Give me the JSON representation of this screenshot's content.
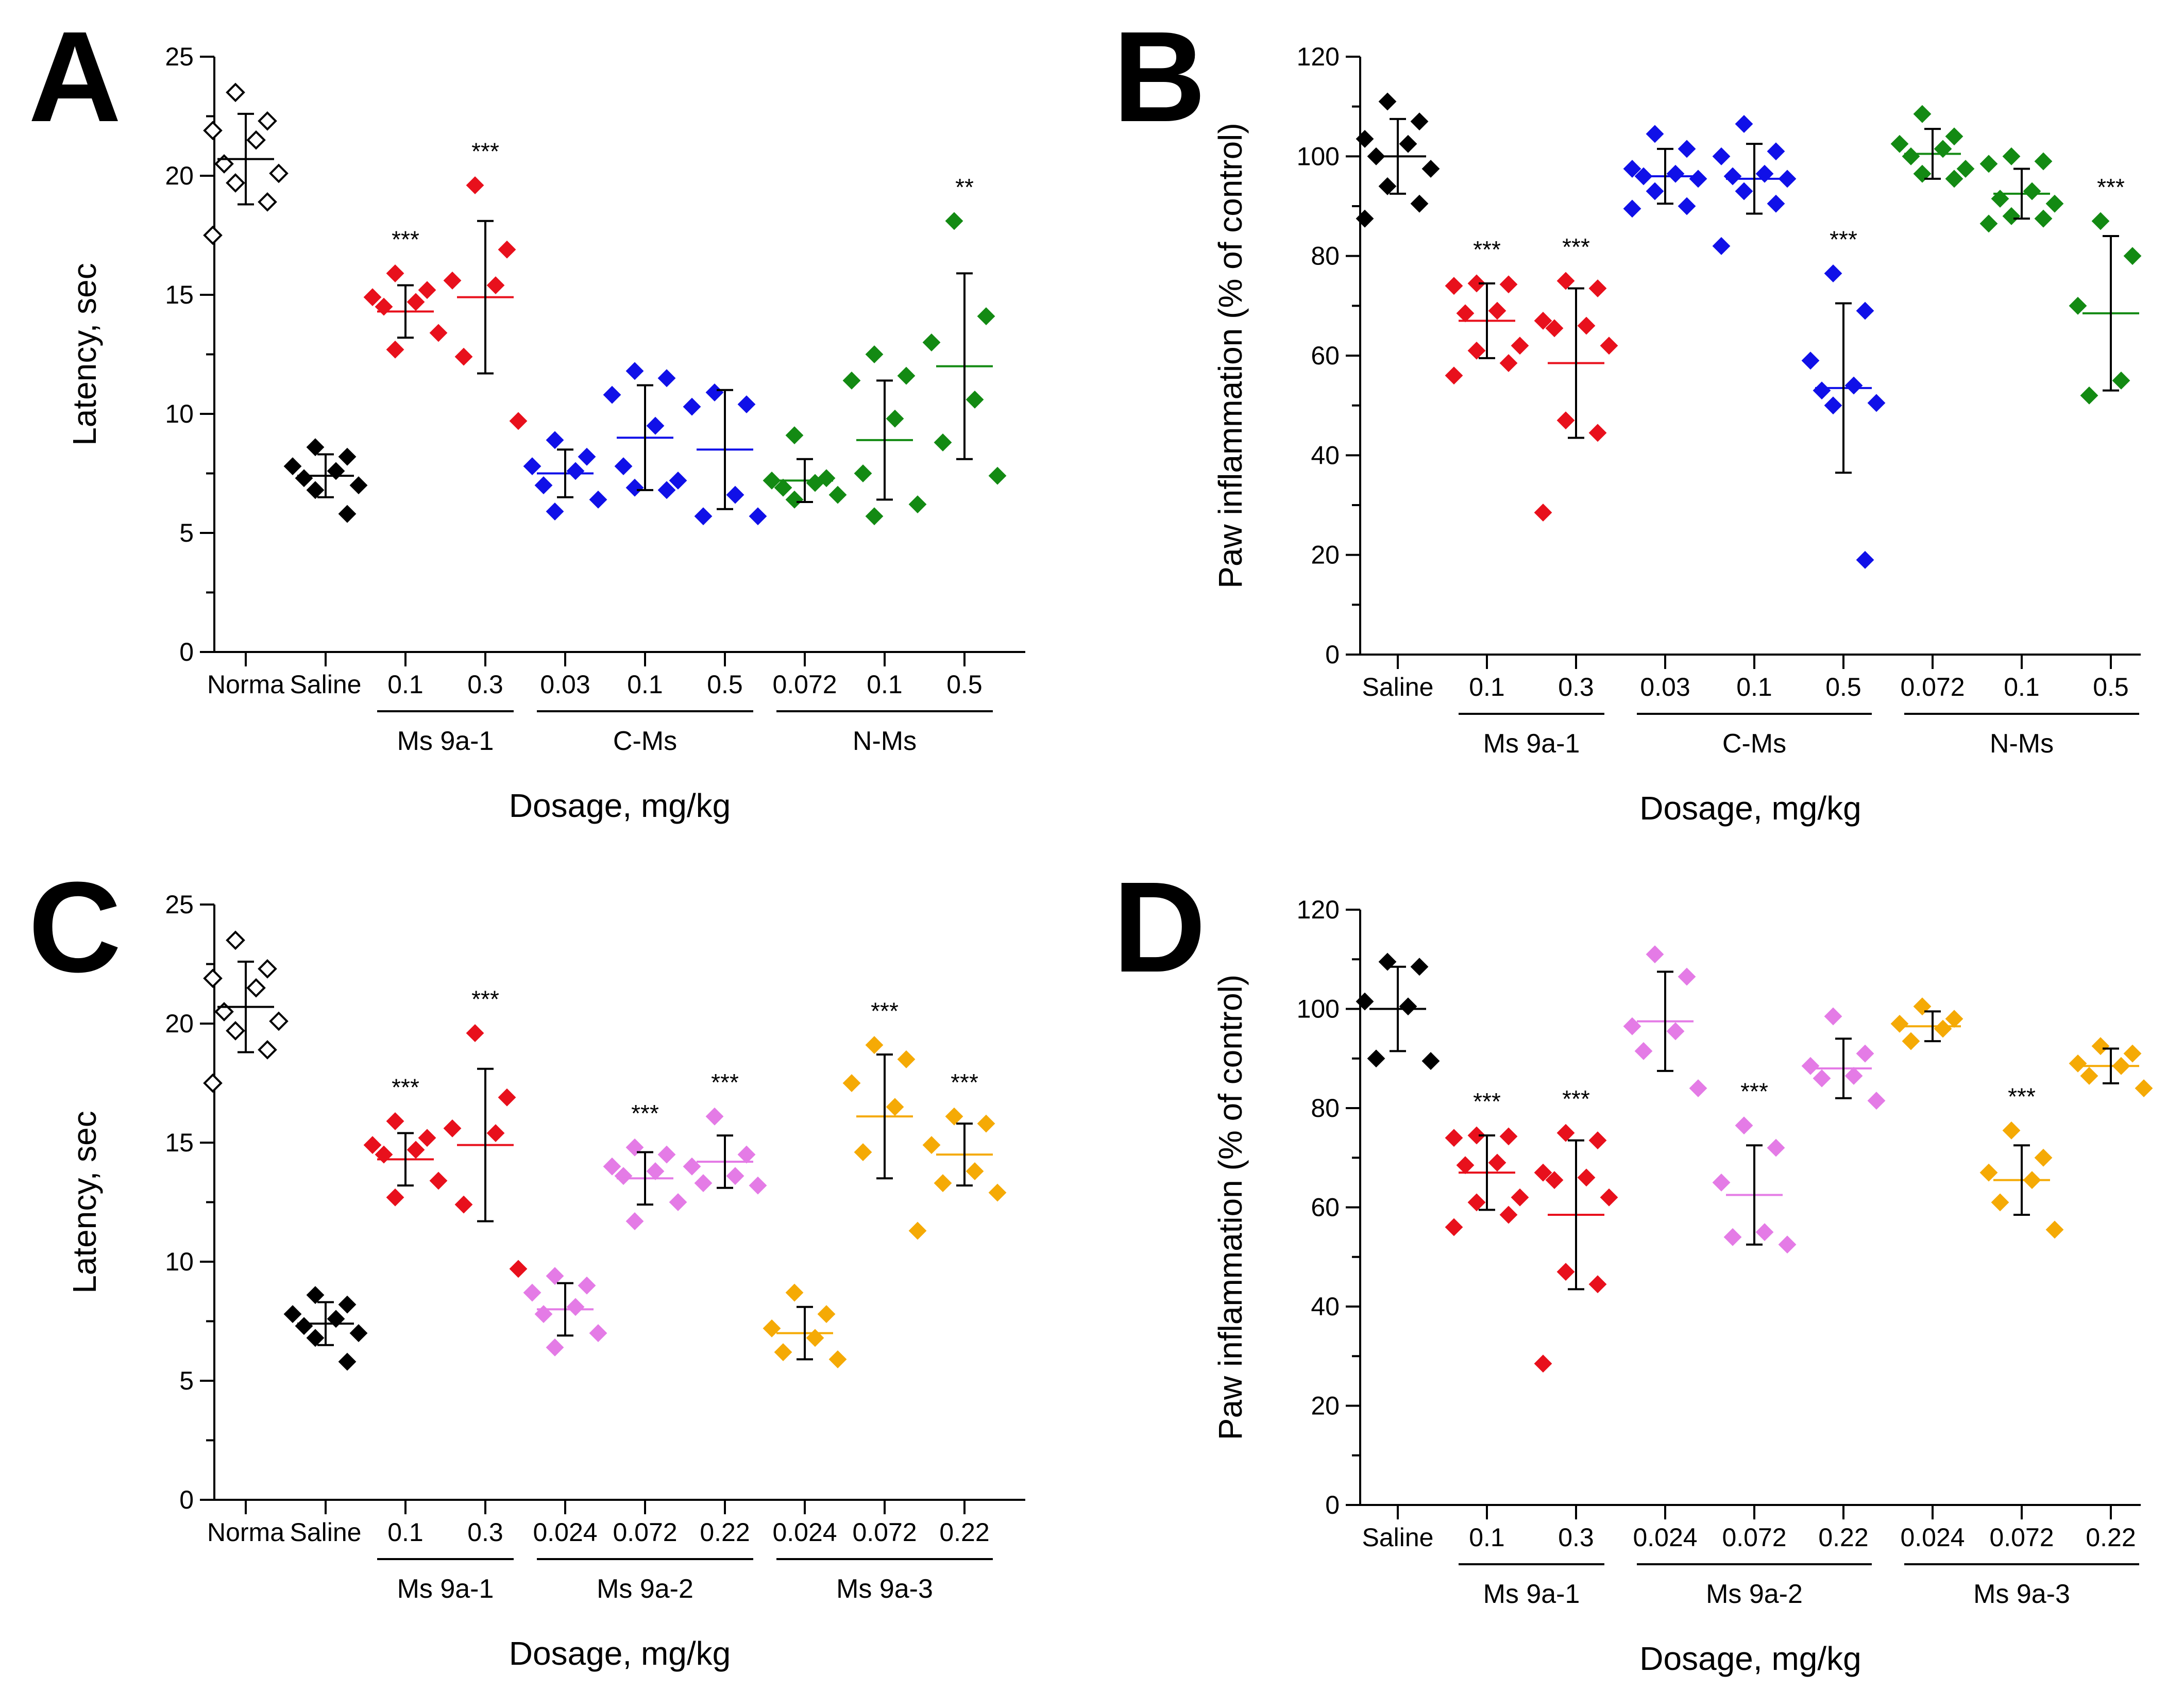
{
  "colors": {
    "black": "#000000",
    "red": "#e8101c",
    "blue": "#1010e8",
    "green": "#138a13",
    "violet": "#e47be6",
    "orange": "#f5aa05"
  },
  "chart_data": [
    {
      "type": "scatter",
      "panel_label": "A",
      "ylabel": "Latency, sec",
      "xlabel": "Dosage, mg/kg",
      "ylim": [
        0,
        25
      ],
      "yticks": [
        "0",
        "5",
        "10",
        "15",
        "20",
        "25"
      ],
      "groups": [
        {
          "label": "Norma",
          "color": "black",
          "open": true,
          "mean": 20.7,
          "sd": 1.9,
          "sig": "",
          "points": [
            23.5,
            22.3,
            21.9,
            21.5,
            20.5,
            20.1,
            19.7,
            18.9,
            17.5
          ]
        },
        {
          "label": "Saline",
          "color": "black",
          "open": false,
          "mean": 7.4,
          "sd": 0.9,
          "sig": "",
          "points": [
            8.6,
            8.2,
            7.8,
            7.6,
            7.3,
            7.0,
            6.8,
            5.8
          ]
        },
        {
          "label": "0.1",
          "color": "red",
          "open": false,
          "mean": 14.3,
          "sd": 1.1,
          "sig": "***",
          "points": [
            15.9,
            15.2,
            14.9,
            14.7,
            14.5,
            13.4,
            12.7
          ]
        },
        {
          "label": "0.3",
          "color": "red",
          "open": false,
          "mean": 14.9,
          "sd": 3.2,
          "sig": "***",
          "points": [
            19.6,
            16.9,
            15.6,
            15.4,
            12.4,
            9.7
          ]
        },
        {
          "label": "0.03",
          "color": "blue",
          "open": false,
          "mean": 7.5,
          "sd": 1.0,
          "sig": "",
          "points": [
            8.9,
            8.2,
            7.8,
            7.6,
            7.0,
            6.4,
            5.9
          ]
        },
        {
          "label": "0.1",
          "color": "blue",
          "open": false,
          "mean": 9.0,
          "sd": 2.2,
          "sig": "",
          "points": [
            11.8,
            11.5,
            10.8,
            9.5,
            7.8,
            7.2,
            6.9,
            6.8
          ]
        },
        {
          "label": "0.5",
          "color": "blue",
          "open": false,
          "mean": 8.5,
          "sd": 2.5,
          "sig": "",
          "points": [
            10.9,
            10.4,
            10.3,
            6.6,
            5.7,
            5.7
          ]
        },
        {
          "label": "0.072",
          "color": "green",
          "open": false,
          "mean": 7.2,
          "sd": 0.9,
          "sig": "",
          "points": [
            9.1,
            7.3,
            7.2,
            7.1,
            6.9,
            6.6,
            6.4
          ]
        },
        {
          "label": "0.1",
          "color": "green",
          "open": false,
          "mean": 8.9,
          "sd": 2.5,
          "sig": "",
          "points": [
            12.5,
            11.6,
            11.4,
            9.8,
            7.5,
            6.2,
            5.7
          ]
        },
        {
          "label": "0.5",
          "color": "green",
          "open": false,
          "mean": 12.0,
          "sd": 3.9,
          "sig": "**",
          "points": [
            18.1,
            14.1,
            13.0,
            10.6,
            8.8,
            7.4
          ]
        }
      ],
      "brackets": [
        {
          "label": "Ms 9a-1",
          "from": 2,
          "to": 3
        },
        {
          "label": "C-Ms",
          "from": 4,
          "to": 6
        },
        {
          "label": "N-Ms",
          "from": 7,
          "to": 9
        }
      ]
    },
    {
      "type": "scatter",
      "panel_label": "B",
      "ylabel": "Paw inflammation (% of control)",
      "xlabel": "Dosage, mg/kg",
      "ylim": [
        0,
        120
      ],
      "yticks": [
        "0",
        "20",
        "40",
        "60",
        "80",
        "100",
        "120"
      ],
      "groups": [
        {
          "label": "Saline",
          "color": "black",
          "open": false,
          "mean": 100.0,
          "sd": 7.5,
          "sig": "",
          "points": [
            111.0,
            107.0,
            103.5,
            102.5,
            100.0,
            97.5,
            94.0,
            90.5,
            87.5
          ]
        },
        {
          "label": "0.1",
          "color": "red",
          "open": false,
          "mean": 67.0,
          "sd": 7.5,
          "sig": "***",
          "points": [
            74.5,
            74.3,
            74.0,
            69.0,
            68.5,
            62.0,
            61.0,
            58.5,
            56.0
          ]
        },
        {
          "label": "0.3",
          "color": "red",
          "open": false,
          "mean": 58.5,
          "sd": 15.0,
          "sig": "***",
          "points": [
            75.0,
            73.5,
            67.0,
            66.0,
            65.5,
            62.0,
            47.0,
            44.5,
            28.5
          ]
        },
        {
          "label": "0.03",
          "color": "blue",
          "open": false,
          "mean": 96.0,
          "sd": 5.5,
          "sig": "",
          "points": [
            104.5,
            101.5,
            97.5,
            96.5,
            96.0,
            95.5,
            93.0,
            90.0,
            89.5
          ]
        },
        {
          "label": "0.1",
          "color": "blue",
          "open": false,
          "mean": 95.5,
          "sd": 7.0,
          "sig": "",
          "points": [
            106.5,
            101.0,
            100.0,
            96.5,
            96.0,
            95.5,
            93.0,
            90.5,
            82.0
          ]
        },
        {
          "label": "0.5",
          "color": "blue",
          "open": false,
          "mean": 53.5,
          "sd": 17.0,
          "sig": "***",
          "points": [
            76.5,
            69.0,
            59.0,
            54.0,
            53.0,
            50.5,
            50.0,
            19.0
          ]
        },
        {
          "label": "0.072",
          "color": "green",
          "open": false,
          "mean": 100.5,
          "sd": 5.0,
          "sig": "",
          "points": [
            108.5,
            104.0,
            102.5,
            101.5,
            100.0,
            97.5,
            96.5,
            95.5
          ]
        },
        {
          "label": "0.1",
          "color": "green",
          "open": false,
          "mean": 92.5,
          "sd": 5.0,
          "sig": "",
          "points": [
            100.0,
            99.0,
            98.5,
            93.0,
            91.5,
            90.5,
            88.0,
            87.5,
            86.5
          ]
        },
        {
          "label": "0.5",
          "color": "green",
          "open": false,
          "mean": 68.5,
          "sd": 15.5,
          "sig": "***",
          "points": [
            87.0,
            80.0,
            70.0,
            55.0,
            52.0
          ]
        }
      ],
      "brackets": [
        {
          "label": "Ms 9a-1",
          "from": 1,
          "to": 2
        },
        {
          "label": "C-Ms",
          "from": 3,
          "to": 5
        },
        {
          "label": "N-Ms",
          "from": 6,
          "to": 8
        }
      ]
    },
    {
      "type": "scatter",
      "panel_label": "C",
      "ylabel": "Latency, sec",
      "xlabel": "Dosage, mg/kg",
      "ylim": [
        0,
        25
      ],
      "yticks": [
        "0",
        "5",
        "10",
        "15",
        "20",
        "25"
      ],
      "groups": [
        {
          "label": "Norma",
          "color": "black",
          "open": true,
          "mean": 20.7,
          "sd": 1.9,
          "sig": "",
          "points": [
            23.5,
            22.3,
            21.9,
            21.5,
            20.5,
            20.1,
            19.7,
            18.9,
            17.5
          ]
        },
        {
          "label": "Saline",
          "color": "black",
          "open": false,
          "mean": 7.4,
          "sd": 0.9,
          "sig": "",
          "points": [
            8.6,
            8.2,
            7.8,
            7.6,
            7.3,
            7.0,
            6.8,
            5.8
          ]
        },
        {
          "label": "0.1",
          "color": "red",
          "open": false,
          "mean": 14.3,
          "sd": 1.1,
          "sig": "***",
          "points": [
            15.9,
            15.2,
            14.9,
            14.7,
            14.5,
            13.4,
            12.7
          ]
        },
        {
          "label": "0.3",
          "color": "red",
          "open": false,
          "mean": 14.9,
          "sd": 3.2,
          "sig": "***",
          "points": [
            19.6,
            16.9,
            15.6,
            15.4,
            12.4,
            9.7
          ]
        },
        {
          "label": "0.024",
          "color": "violet",
          "open": false,
          "mean": 8.0,
          "sd": 1.1,
          "sig": "",
          "points": [
            9.4,
            9.0,
            8.7,
            8.1,
            7.8,
            7.0,
            6.4
          ]
        },
        {
          "label": "0.072",
          "color": "violet",
          "open": false,
          "mean": 13.5,
          "sd": 1.1,
          "sig": "***",
          "points": [
            14.8,
            14.5,
            14.0,
            13.8,
            13.6,
            12.5,
            11.7
          ]
        },
        {
          "label": "0.22",
          "color": "violet",
          "open": false,
          "mean": 14.2,
          "sd": 1.1,
          "sig": "***",
          "points": [
            16.1,
            14.5,
            14.0,
            13.6,
            13.3,
            13.2
          ]
        },
        {
          "label": "0.024",
          "color": "orange",
          "open": false,
          "mean": 7.0,
          "sd": 1.1,
          "sig": "",
          "points": [
            8.7,
            7.8,
            7.2,
            6.8,
            6.2,
            5.9
          ]
        },
        {
          "label": "0.072",
          "color": "orange",
          "open": false,
          "mean": 16.1,
          "sd": 2.6,
          "sig": "***",
          "points": [
            19.1,
            18.5,
            17.5,
            16.5,
            14.6,
            11.3
          ]
        },
        {
          "label": "0.22",
          "color": "orange",
          "open": false,
          "mean": 14.5,
          "sd": 1.3,
          "sig": "***",
          "points": [
            16.1,
            15.8,
            14.9,
            13.8,
            13.3,
            12.9
          ]
        }
      ],
      "brackets": [
        {
          "label": "Ms 9a-1",
          "from": 2,
          "to": 3
        },
        {
          "label": "Ms 9a-2",
          "from": 4,
          "to": 6
        },
        {
          "label": "Ms 9a-3",
          "from": 7,
          "to": 9
        }
      ]
    },
    {
      "type": "scatter",
      "panel_label": "D",
      "ylabel": "Paw inflammation (% of control)",
      "xlabel": "Dosage, mg/kg",
      "ylim": [
        0,
        120
      ],
      "yticks": [
        "0",
        "20",
        "40",
        "60",
        "80",
        "100",
        "120"
      ],
      "groups": [
        {
          "label": "Saline",
          "color": "black",
          "open": false,
          "mean": 100.0,
          "sd": 8.5,
          "sig": "",
          "points": [
            109.5,
            108.5,
            101.5,
            100.5,
            90.0,
            89.5
          ]
        },
        {
          "label": "0.1",
          "color": "red",
          "open": false,
          "mean": 67.0,
          "sd": 7.5,
          "sig": "***",
          "points": [
            74.5,
            74.3,
            74.0,
            69.0,
            68.5,
            62.0,
            61.0,
            58.5,
            56.0
          ]
        },
        {
          "label": "0.3",
          "color": "red",
          "open": false,
          "mean": 58.5,
          "sd": 15.0,
          "sig": "***",
          "points": [
            75.0,
            73.5,
            67.0,
            66.0,
            65.5,
            62.0,
            47.0,
            44.5,
            28.5
          ]
        },
        {
          "label": "0.024",
          "color": "violet",
          "open": false,
          "mean": 97.5,
          "sd": 10.0,
          "sig": "",
          "points": [
            111.0,
            106.5,
            96.5,
            95.5,
            91.5,
            84.0
          ]
        },
        {
          "label": "0.072",
          "color": "violet",
          "open": false,
          "mean": 62.5,
          "sd": 10.0,
          "sig": "***",
          "points": [
            76.5,
            72.0,
            65.0,
            55.0,
            54.0,
            52.5
          ]
        },
        {
          "label": "0.22",
          "color": "violet",
          "open": false,
          "mean": 88.0,
          "sd": 6.0,
          "sig": "",
          "points": [
            98.5,
            91.0,
            88.5,
            86.5,
            86.0,
            81.5
          ]
        },
        {
          "label": "0.024",
          "color": "orange",
          "open": false,
          "mean": 96.5,
          "sd": 3.0,
          "sig": "",
          "points": [
            100.5,
            98.0,
            97.0,
            96.0,
            93.5
          ]
        },
        {
          "label": "0.072",
          "color": "orange",
          "open": false,
          "mean": 65.5,
          "sd": 7.0,
          "sig": "***",
          "points": [
            75.5,
            70.0,
            67.0,
            65.5,
            61.0,
            55.5
          ]
        },
        {
          "label": "0.22",
          "color": "orange",
          "open": false,
          "mean": 88.5,
          "sd": 3.5,
          "sig": "",
          "points": [
            92.5,
            91.0,
            89.0,
            88.5,
            86.5,
            84.0
          ]
        }
      ],
      "brackets": [
        {
          "label": "Ms 9a-1",
          "from": 1,
          "to": 2
        },
        {
          "label": "Ms 9a-2",
          "from": 3,
          "to": 5
        },
        {
          "label": "Ms 9a-3",
          "from": 6,
          "to": 8
        }
      ]
    }
  ]
}
